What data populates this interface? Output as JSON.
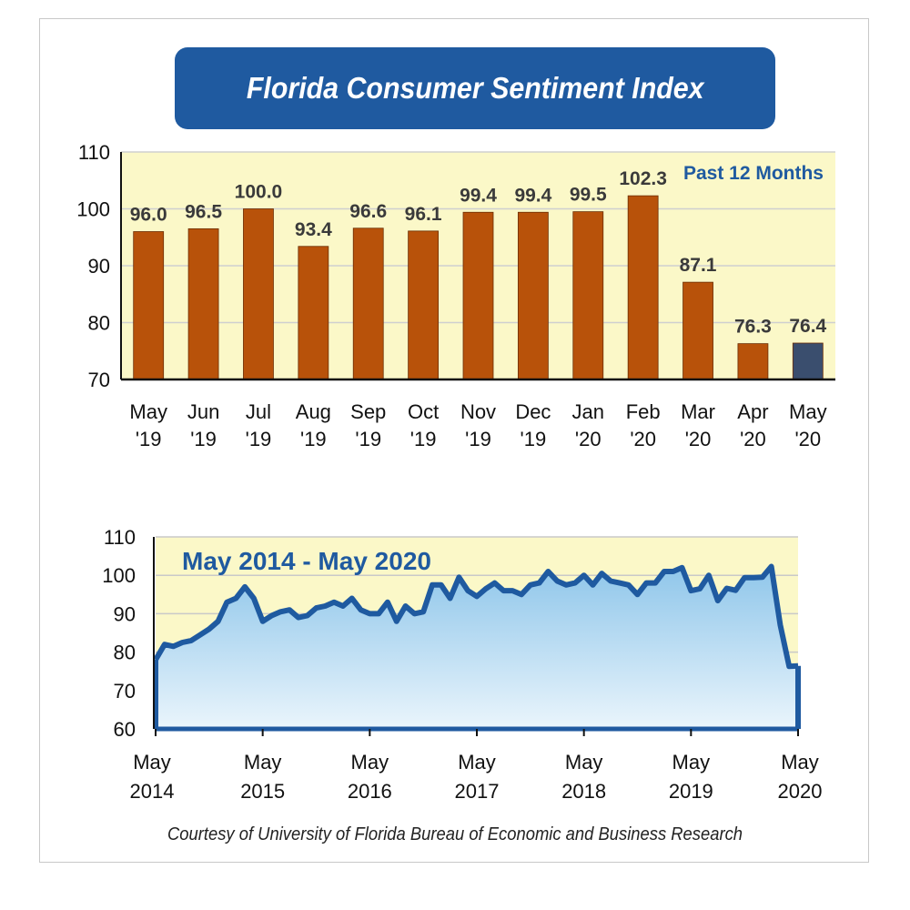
{
  "title": "Florida Consumer Sentiment Index",
  "credit": "Courtesy of University of Florida Bureau of Economic and Business Research",
  "colors": {
    "banner": "#1f5aa0",
    "plot_bg": "#fbf8c8",
    "bar": "#b8520a",
    "bar_highlight": "#3a4e6e",
    "line": "#1f5aa0",
    "area_top": "#8fc6ea",
    "area_bottom": "#eaf5fc"
  },
  "chart_data": [
    {
      "type": "bar",
      "annotation": "Past 12 Months",
      "categories": [
        [
          "May",
          "'19"
        ],
        [
          "Jun",
          "'19"
        ],
        [
          "Jul",
          "'19"
        ],
        [
          "Aug",
          "'19"
        ],
        [
          "Sep",
          "'19"
        ],
        [
          "Oct",
          "'19"
        ],
        [
          "Nov",
          "'19"
        ],
        [
          "Dec",
          "'19"
        ],
        [
          "Jan",
          "'20"
        ],
        [
          "Feb",
          "'20"
        ],
        [
          "Mar",
          "'20"
        ],
        [
          "Apr",
          "'20"
        ],
        [
          "May",
          "'20"
        ]
      ],
      "values": [
        96.0,
        96.5,
        100.0,
        93.4,
        96.6,
        96.1,
        99.4,
        99.4,
        99.5,
        102.3,
        87.1,
        76.3,
        76.4
      ],
      "value_labels": [
        "96.0",
        "96.5",
        "100.0",
        "93.4",
        "96.6",
        "96.1",
        "99.4",
        "99.4",
        "99.5",
        "102.3",
        "87.1",
        "76.3",
        "76.4"
      ],
      "highlight_index": 12,
      "ylim": [
        70,
        110
      ],
      "yticks": [
        70,
        80,
        90,
        100,
        110
      ],
      "grid": true
    },
    {
      "type": "area",
      "annotation": "May 2014 - May 2020",
      "x_tick_labels": [
        [
          "May",
          "2014"
        ],
        [
          "May",
          "2015"
        ],
        [
          "May",
          "2016"
        ],
        [
          "May",
          "2017"
        ],
        [
          "May",
          "2018"
        ],
        [
          "May",
          "2019"
        ],
        [
          "May",
          "2020"
        ]
      ],
      "x_start": "2014-05",
      "x_end": "2020-05",
      "values": [
        78,
        82,
        81.5,
        82.5,
        83,
        84.5,
        86,
        88,
        93,
        94,
        97,
        94,
        88,
        89.5,
        90.5,
        91,
        89,
        89.5,
        91.5,
        92,
        93,
        92,
        94,
        91,
        90,
        90,
        93,
        88,
        92,
        90,
        90.5,
        97.5,
        97.5,
        94,
        99.5,
        96,
        94.5,
        96.5,
        98,
        96,
        96,
        95,
        97.5,
        98,
        101,
        98.5,
        97.5,
        98,
        100,
        97.5,
        100.5,
        98.5,
        98,
        97.5,
        95,
        98,
        98,
        101,
        101,
        102,
        96,
        96.5,
        100,
        93.4,
        96.6,
        96.1,
        99.4,
        99.4,
        99.5,
        102.3,
        87.1,
        76.3,
        76.4
      ],
      "ylim": [
        60,
        110
      ],
      "yticks": [
        60,
        70,
        80,
        90,
        100,
        110
      ],
      "grid": true
    }
  ]
}
